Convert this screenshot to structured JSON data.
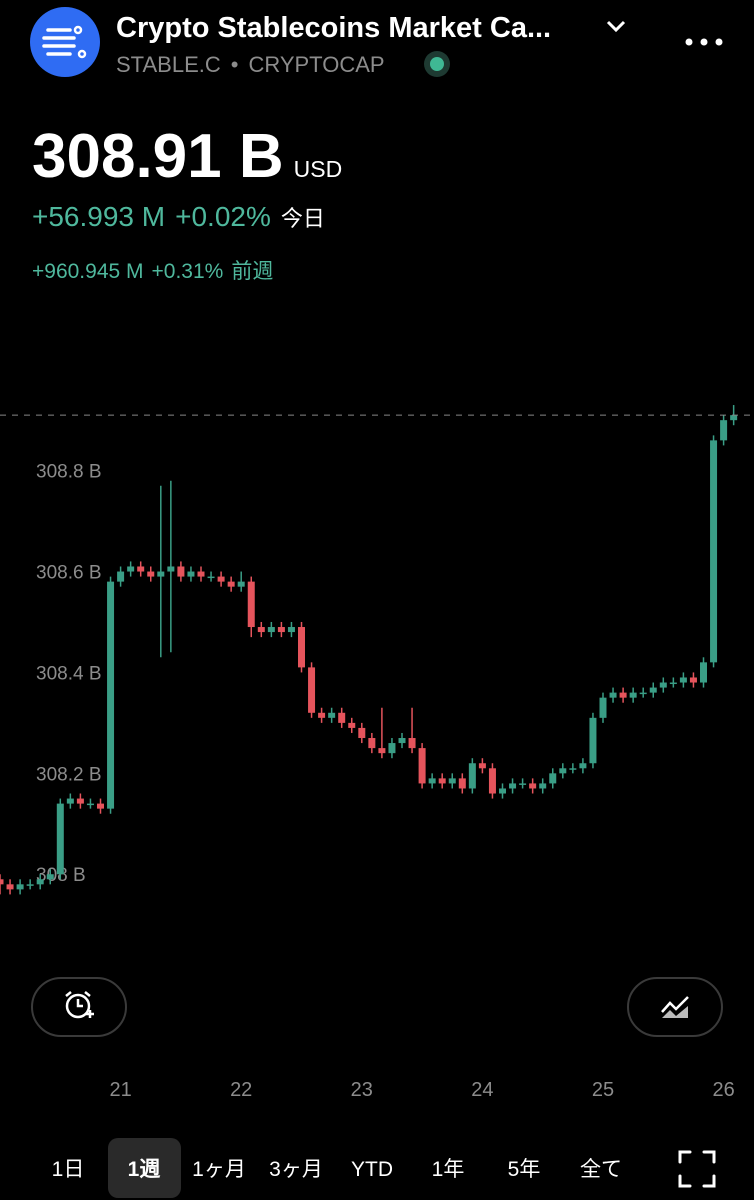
{
  "header": {
    "title": "Crypto Stablecoins Market Ca...",
    "symbol": "STABLE.C",
    "exchange": "CRYPTOCAP"
  },
  "quote": {
    "price": "308.91 B",
    "currency": "USD",
    "today_change": "+56.993 M",
    "today_change_pct": "+0.02%",
    "today_label": "今日",
    "week_change": "+960.945 M",
    "week_change_pct": "+0.31%",
    "week_label": "前週"
  },
  "chart_data": {
    "type": "candlestick",
    "categories": [
      null,
      null,
      null,
      null,
      null,
      null,
      null,
      null,
      null,
      null,
      null,
      null,
      "21",
      null,
      null,
      null,
      null,
      null,
      null,
      null,
      null,
      null,
      null,
      null,
      "22",
      null,
      null,
      null,
      null,
      null,
      null,
      null,
      null,
      null,
      null,
      null,
      "23",
      null,
      null,
      null,
      null,
      null,
      null,
      null,
      null,
      null,
      null,
      null,
      "24",
      null,
      null,
      null,
      null,
      null,
      null,
      null,
      null,
      null,
      null,
      null,
      "25",
      null,
      null,
      null,
      null,
      null,
      null,
      null,
      null,
      null,
      null,
      null,
      "26",
      null
    ],
    "series": [
      {
        "up_color": "#3a9e86",
        "down_color": "#e5545c",
        "open": [
          307.99,
          307.98,
          307.97,
          307.98,
          307.98,
          307.99,
          308.0,
          308.14,
          308.15,
          308.14,
          308.14,
          308.13,
          308.58,
          308.6,
          308.61,
          308.6,
          308.59,
          308.6,
          308.61,
          308.59,
          308.6,
          308.59,
          308.59,
          308.58,
          308.57,
          308.58,
          308.49,
          308.48,
          308.49,
          308.48,
          308.49,
          308.41,
          308.32,
          308.31,
          308.32,
          308.3,
          308.29,
          308.27,
          308.25,
          308.24,
          308.26,
          308.27,
          308.25,
          308.18,
          308.19,
          308.18,
          308.19,
          308.17,
          308.22,
          308.21,
          308.16,
          308.17,
          308.18,
          308.18,
          308.17,
          308.18,
          308.2,
          308.21,
          308.21,
          308.22,
          308.31,
          308.35,
          308.36,
          308.35,
          308.36,
          308.36,
          308.37,
          308.38,
          308.38,
          308.39,
          308.38,
          308.42,
          308.86,
          308.9
        ],
        "high": [
          308.0,
          307.99,
          307.99,
          307.99,
          308.0,
          308.01,
          308.15,
          308.16,
          308.16,
          308.15,
          308.15,
          308.59,
          308.61,
          308.62,
          308.62,
          308.61,
          308.77,
          308.78,
          308.62,
          308.61,
          308.61,
          308.6,
          308.6,
          308.59,
          308.6,
          308.59,
          308.5,
          308.5,
          308.5,
          308.5,
          308.5,
          308.42,
          308.33,
          308.33,
          308.33,
          308.31,
          308.3,
          308.28,
          308.33,
          308.27,
          308.28,
          308.33,
          308.26,
          308.2,
          308.2,
          308.2,
          308.2,
          308.23,
          308.23,
          308.22,
          308.18,
          308.19,
          308.19,
          308.19,
          308.19,
          308.21,
          308.22,
          308.22,
          308.23,
          308.32,
          308.36,
          308.37,
          308.37,
          308.37,
          308.37,
          308.38,
          308.39,
          308.39,
          308.4,
          308.4,
          308.43,
          308.87,
          308.91,
          308.93
        ],
        "low": [
          307.96,
          307.96,
          307.96,
          307.97,
          307.97,
          307.98,
          307.99,
          308.13,
          308.13,
          308.13,
          308.12,
          308.12,
          308.57,
          308.59,
          308.59,
          308.58,
          308.43,
          308.44,
          308.58,
          308.58,
          308.58,
          308.58,
          308.57,
          308.56,
          308.56,
          308.47,
          308.47,
          308.47,
          308.47,
          308.47,
          308.4,
          308.31,
          308.3,
          308.3,
          308.29,
          308.28,
          308.26,
          308.24,
          308.23,
          308.23,
          308.25,
          308.24,
          308.17,
          308.17,
          308.17,
          308.17,
          308.16,
          308.16,
          308.2,
          308.15,
          308.15,
          308.16,
          308.17,
          308.16,
          308.16,
          308.17,
          308.19,
          308.2,
          308.2,
          308.21,
          308.3,
          308.34,
          308.34,
          308.34,
          308.35,
          308.35,
          308.36,
          308.37,
          308.37,
          308.37,
          308.37,
          308.41,
          308.85,
          308.89
        ],
        "close": [
          307.98,
          307.97,
          307.98,
          307.98,
          307.99,
          308.0,
          308.14,
          308.15,
          308.14,
          308.14,
          308.13,
          308.58,
          308.6,
          308.61,
          308.6,
          308.59,
          308.6,
          308.61,
          308.59,
          308.6,
          308.59,
          308.59,
          308.58,
          308.57,
          308.58,
          308.49,
          308.48,
          308.49,
          308.48,
          308.49,
          308.41,
          308.32,
          308.31,
          308.32,
          308.3,
          308.29,
          308.27,
          308.25,
          308.24,
          308.26,
          308.27,
          308.25,
          308.18,
          308.19,
          308.18,
          308.19,
          308.17,
          308.22,
          308.21,
          308.16,
          308.17,
          308.18,
          308.18,
          308.17,
          308.18,
          308.2,
          308.21,
          308.21,
          308.22,
          308.31,
          308.35,
          308.36,
          308.35,
          308.36,
          308.36,
          308.37,
          308.38,
          308.38,
          308.39,
          308.38,
          308.42,
          308.86,
          308.9,
          308.91
        ]
      }
    ],
    "ylim": [
      307.83,
      308.94
    ],
    "yticks": [
      {
        "value": 308.8,
        "label": "308.8 B"
      },
      {
        "value": 308.6,
        "label": "308.6 B"
      },
      {
        "value": 308.4,
        "label": "308.4 B"
      },
      {
        "value": 308.2,
        "label": "308.2 B"
      },
      {
        "value": 308,
        "label": "308 B"
      }
    ],
    "grid": false,
    "last_price_line": true
  },
  "ranges": {
    "items": [
      "1日",
      "1週",
      "1ヶ月",
      "3ヶ月",
      "YTD",
      "1年",
      "5年",
      "全て"
    ],
    "selected": 1
  }
}
